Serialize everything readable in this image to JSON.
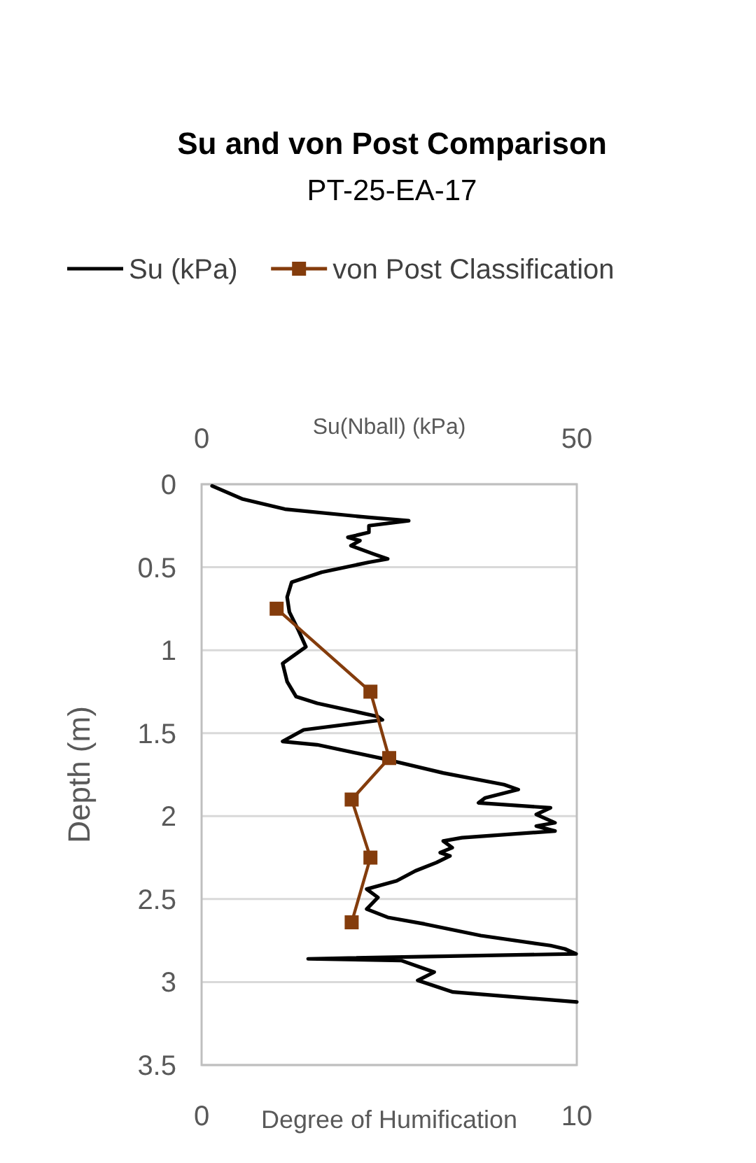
{
  "chart_data": {
    "type": "line",
    "title": "Su and von Post Comparison",
    "subtitle": "PT-25-EA-17",
    "xlabel": "Degree of Humification",
    "x2label": "Su(Nball) (kPa)",
    "ylabel": "Depth (m)",
    "xlim": [
      0,
      10
    ],
    "xticks": [
      0,
      10
    ],
    "x2lim": [
      0,
      50
    ],
    "x2ticks": [
      0,
      50
    ],
    "ylim": [
      3.5,
      0
    ],
    "yticks": [
      0,
      0.5,
      1,
      1.5,
      2,
      2.5,
      3,
      3.5
    ],
    "grid": "y",
    "legend": "top",
    "series": [
      {
        "name": "Su (kPa)",
        "color": "#000000",
        "axis": "x2",
        "marker": "none",
        "x": [
          1.4,
          5.5,
          11.1,
          22.3,
          27.6,
          22.3,
          22.3,
          19.5,
          21.1,
          19.9,
          22.9,
          24.8,
          22.3,
          16.0,
          12.0,
          11.4,
          11.7,
          12.9,
          13.9,
          10.8,
          11.4,
          12.6,
          15.4,
          23.5,
          24.1,
          13.6,
          10.8,
          15.4,
          24.8,
          32.2,
          40.3,
          42.2,
          37.8,
          36.9,
          46.5,
          44.6,
          47.1,
          44.6,
          47.1,
          34.7,
          32.2,
          33.4,
          31.8,
          33.1,
          31.3,
          28.5,
          26.0,
          22.0,
          23.5,
          22.0,
          24.8,
          29.7,
          37.2,
          46.5,
          48.4,
          49.9,
          14.2,
          26.6,
          31.0,
          28.8,
          33.5,
          50
        ],
        "values": [
          0.01,
          0.09,
          0.15,
          0.2,
          0.22,
          0.25,
          0.29,
          0.32,
          0.34,
          0.37,
          0.42,
          0.45,
          0.47,
          0.53,
          0.59,
          0.68,
          0.77,
          0.88,
          0.98,
          1.08,
          1.19,
          1.28,
          1.32,
          1.4,
          1.42,
          1.48,
          1.55,
          1.57,
          1.66,
          1.74,
          1.81,
          1.84,
          1.89,
          1.92,
          1.95,
          1.99,
          2.04,
          2.06,
          2.09,
          2.13,
          2.15,
          2.19,
          2.22,
          2.24,
          2.28,
          2.33,
          2.39,
          2.44,
          2.49,
          2.56,
          2.61,
          2.65,
          2.72,
          2.78,
          2.8,
          2.83,
          2.86,
          2.87,
          2.94,
          2.99,
          3.06,
          3.12
        ]
      },
      {
        "name": "von Post Classification",
        "color": "#843c0c",
        "marker": "square",
        "x": [
          2.0,
          4.5,
          5.0,
          4.0,
          4.5,
          4.0
        ],
        "values": [
          0.75,
          1.25,
          1.65,
          1.9,
          2.25,
          2.64
        ]
      }
    ]
  }
}
